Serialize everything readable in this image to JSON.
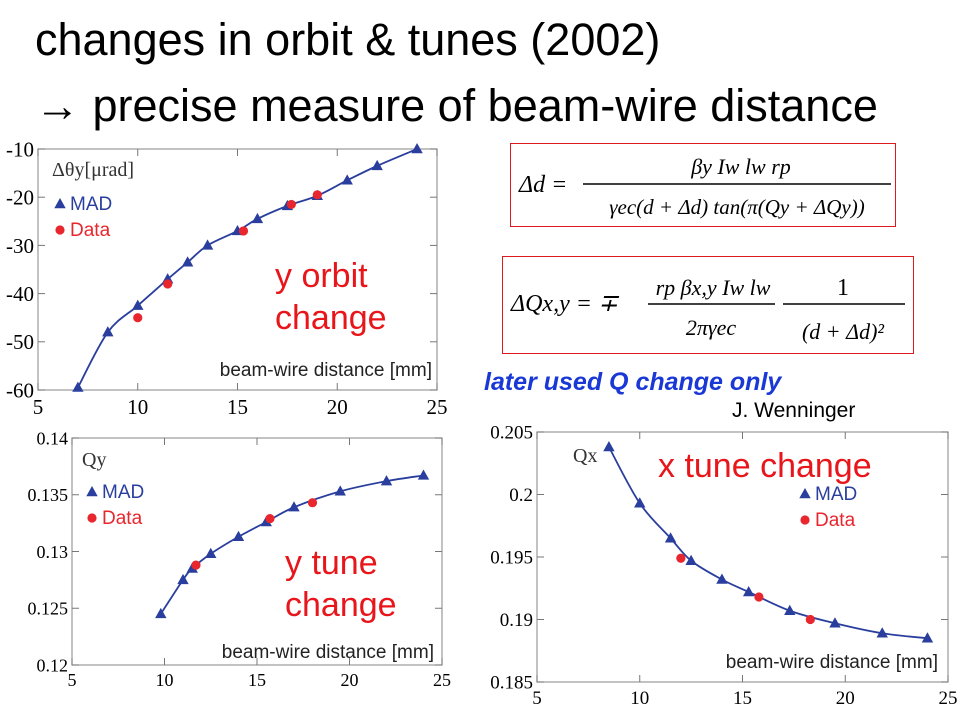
{
  "slide": {
    "title_line1": "changes in orbit & tunes (2002)",
    "title_line2": "→ precise measure of beam-wire distance",
    "note": "later used Q change only",
    "author": "J. Wenninger",
    "colors": {
      "mad": "#2a3e9e",
      "data": "#e8262e",
      "accent_text": "#e8151b",
      "note_text": "#1a38d6",
      "formula_border": "#e0191e"
    }
  },
  "formulas": {
    "delta_d": {
      "lhs": "Δd =",
      "numerator": "βy Iw lw rp",
      "denominator": "γec(d + Δd) tan(π(Qy + ΔQy))"
    },
    "delta_q": {
      "lhs": "ΔQx,y = ∓",
      "numerator": "rp βx,y Iw lw",
      "denominator": "2πγec",
      "factor_numerator": "1",
      "factor_denominator": "(d + Δd)²"
    }
  },
  "chart_data": [
    {
      "type": "scatter",
      "title": "",
      "panel_label": "Δθy[μrad]",
      "annotation": [
        "y orbit",
        "change"
      ],
      "xlabel": "beam-wire distance [mm]",
      "ylabel": "",
      "xlim": [
        5,
        25
      ],
      "ylim": [
        -60,
        -10
      ],
      "xticks": [
        5,
        10,
        15,
        20,
        25
      ],
      "yticks": [
        -10,
        -20,
        -30,
        -40,
        -50,
        -60
      ],
      "legend": {
        "position": "top-left",
        "entries": [
          "MAD",
          "Data"
        ]
      },
      "series": [
        {
          "name": "MAD",
          "marker": "triangle",
          "line": true,
          "x": [
            7,
            8.5,
            10,
            11.5,
            12.5,
            13.5,
            15,
            16,
            17.5,
            19,
            20.5,
            22,
            24
          ],
          "y": [
            -59.5,
            -48,
            -42.5,
            -37,
            -33.5,
            -30,
            -27,
            -24.5,
            -21.8,
            -19.7,
            -16.5,
            -13.5,
            -10
          ]
        },
        {
          "name": "Data",
          "marker": "circle",
          "line": false,
          "x": [
            10,
            11.5,
            15.3,
            17.7,
            19
          ],
          "y": [
            -45,
            -38,
            -27,
            -21.5,
            -19.5
          ]
        }
      ]
    },
    {
      "type": "scatter",
      "title": "",
      "panel_label": "Qy",
      "annotation": [
        "y tune",
        "change"
      ],
      "xlabel": "beam-wire distance [mm]",
      "ylabel": "",
      "xlim": [
        5,
        25
      ],
      "ylim": [
        0.12,
        0.14
      ],
      "xticks": [
        5,
        10,
        15,
        20,
        25
      ],
      "yticks": [
        0.14,
        0.135,
        0.13,
        0.125,
        0.12
      ],
      "yticklabels": [
        "0.14",
        "0.135",
        "0.13",
        "0.125",
        "0.12"
      ],
      "legend": {
        "position": "top-left",
        "entries": [
          "MAD",
          "Data"
        ]
      },
      "series": [
        {
          "name": "MAD",
          "marker": "triangle",
          "line": true,
          "x": [
            9.8,
            11,
            11.5,
            12.5,
            14,
            15.5,
            17,
            19.5,
            22,
            24
          ],
          "y": [
            0.1245,
            0.1275,
            0.1285,
            0.1298,
            0.1313,
            0.1326,
            0.1339,
            0.1353,
            0.1362,
            0.1367
          ]
        },
        {
          "name": "Data",
          "marker": "circle",
          "line": false,
          "x": [
            11.7,
            15.7,
            18
          ],
          "y": [
            0.1288,
            0.1329,
            0.1343
          ]
        }
      ]
    },
    {
      "type": "scatter",
      "title": "",
      "panel_label": "Qx",
      "annotation": [
        "x tune change"
      ],
      "xlabel": "beam-wire distance [mm]",
      "ylabel": "",
      "xlim": [
        5,
        25
      ],
      "ylim": [
        0.185,
        0.205
      ],
      "xticks": [
        5,
        10,
        15,
        20,
        25
      ],
      "yticks": [
        0.205,
        0.2,
        0.195,
        0.19,
        0.185
      ],
      "yticklabels": [
        "0.205",
        "0.2",
        "0.195",
        "0.19",
        "0.185"
      ],
      "legend": {
        "position": "top-right",
        "entries": [
          "MAD",
          "Data"
        ]
      },
      "series": [
        {
          "name": "MAD",
          "marker": "triangle",
          "line": true,
          "x": [
            8.5,
            10,
            11.5,
            12.5,
            14,
            15.3,
            17.3,
            19.5,
            21.8,
            24
          ],
          "y": [
            0.2038,
            0.1993,
            0.1965,
            0.1947,
            0.1932,
            0.1922,
            0.1907,
            0.1897,
            0.1889,
            0.1885
          ]
        },
        {
          "name": "Data",
          "marker": "circle",
          "line": false,
          "x": [
            12,
            15.8,
            18.3
          ],
          "y": [
            0.1949,
            0.1918,
            0.19
          ]
        }
      ]
    }
  ]
}
